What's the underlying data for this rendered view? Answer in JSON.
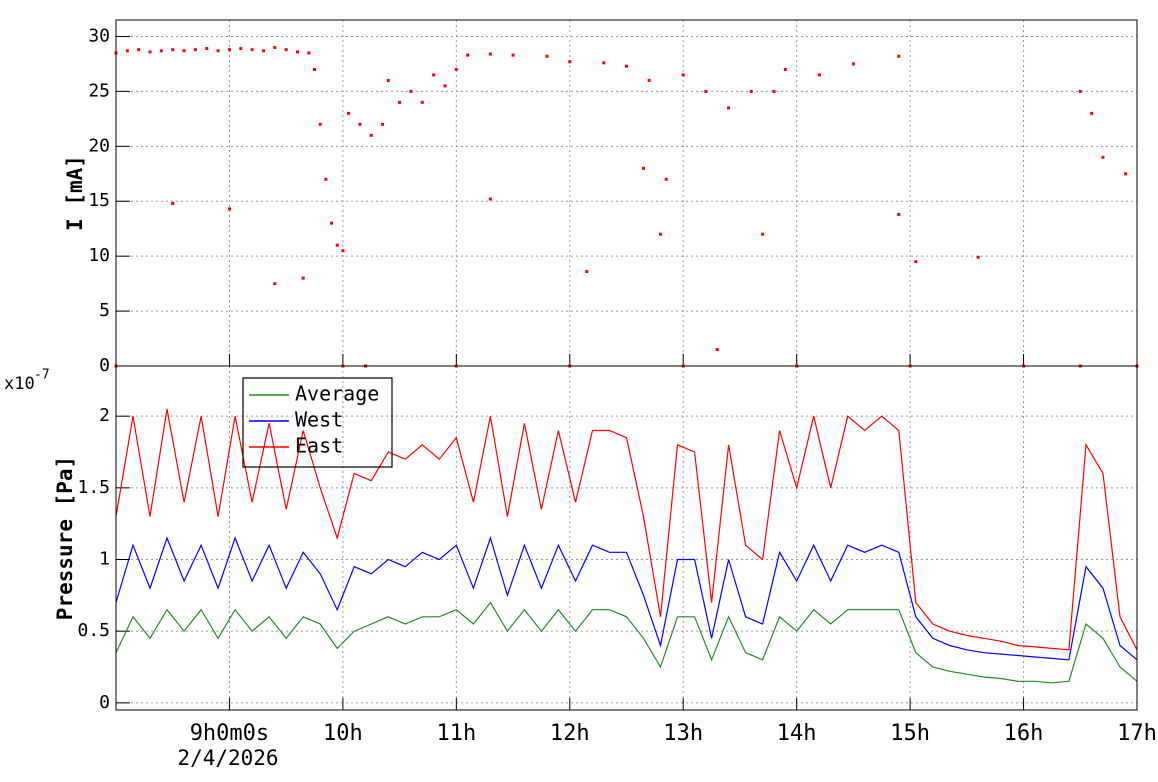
{
  "chart_data": [
    {
      "type": "scatter",
      "ylabel": "I [mA]",
      "color": "#ff0000",
      "xlim": [
        8,
        17
      ],
      "xticks": [
        9,
        10,
        11,
        12,
        13,
        14,
        15,
        16,
        17
      ],
      "ylim": [
        0,
        31.5
      ],
      "yticks": [
        0,
        5,
        10,
        15,
        20,
        25,
        30
      ],
      "grid": true,
      "x": [
        8.0,
        8.0,
        8.1,
        8.2,
        8.3,
        8.4,
        8.5,
        8.5,
        8.6,
        8.7,
        8.8,
        8.9,
        9.0,
        9.0,
        9.1,
        9.2,
        9.3,
        9.4,
        9.4,
        9.5,
        9.6,
        9.65,
        9.7,
        9.75,
        9.8,
        9.85,
        9.9,
        9.95,
        10.0,
        10.0,
        10.05,
        10.15,
        10.2,
        10.25,
        10.35,
        10.4,
        10.5,
        10.6,
        10.7,
        10.8,
        10.9,
        11.0,
        11.0,
        11.1,
        11.3,
        11.3,
        11.5,
        11.8,
        12.0,
        12.0,
        12.15,
        12.3,
        12.5,
        12.65,
        12.7,
        12.8,
        12.85,
        13.0,
        13.0,
        13.2,
        13.3,
        13.4,
        13.6,
        13.7,
        13.8,
        13.9,
        14.0,
        14.2,
        14.5,
        14.9,
        14.9,
        15.0,
        15.05,
        15.6,
        16.0,
        16.5,
        16.5,
        16.6,
        16.7,
        16.9,
        17.0
      ],
      "values": [
        28.5,
        0,
        28.7,
        28.8,
        28.6,
        28.7,
        28.8,
        14.8,
        28.7,
        28.8,
        28.9,
        28.7,
        28.8,
        14.3,
        28.9,
        28.8,
        28.7,
        29.0,
        7.5,
        28.8,
        28.6,
        8.0,
        28.5,
        27.0,
        22.0,
        17.0,
        13.0,
        11.0,
        10.5,
        0,
        23.0,
        22.0,
        0,
        21.0,
        22.0,
        26.0,
        24.0,
        25.0,
        24.0,
        26.5,
        25.5,
        27.0,
        0,
        28.3,
        28.4,
        15.2,
        28.3,
        28.2,
        27.7,
        0,
        8.6,
        27.6,
        27.3,
        18.0,
        26.0,
        12.0,
        17.0,
        26.5,
        0,
        25.0,
        1.5,
        23.5,
        25.0,
        12.0,
        25.0,
        27.0,
        0,
        26.5,
        27.5,
        28.2,
        13.8,
        0,
        9.5,
        9.9,
        0,
        25.0,
        0,
        23.0,
        19.0,
        17.5,
        0
      ]
    },
    {
      "type": "line",
      "ylabel": "Pressure [Pa]",
      "y_multiplier": "x10",
      "y_multiplier_exponent": "-7",
      "date_label": "2/4/2026",
      "legend": "upper-left",
      "grid": true,
      "xlim": [
        8,
        17
      ],
      "xticks": [
        {
          "value": 9,
          "label": "9h0m0s"
        },
        {
          "value": 10,
          "label": "10h"
        },
        {
          "value": 11,
          "label": "11h"
        },
        {
          "value": 12,
          "label": "12h"
        },
        {
          "value": 13,
          "label": "13h"
        },
        {
          "value": 14,
          "label": "14h"
        },
        {
          "value": 15,
          "label": "15h"
        },
        {
          "value": 16,
          "label": "16h"
        },
        {
          "value": 17,
          "label": "17h"
        }
      ],
      "ylim": [
        -0.05,
        2.35
      ],
      "yticks": [
        0,
        0.5,
        1,
        1.5,
        2
      ],
      "x": [
        8.0,
        8.15,
        8.3,
        8.45,
        8.6,
        8.75,
        8.9,
        9.05,
        9.2,
        9.35,
        9.5,
        9.65,
        9.8,
        9.95,
        10.1,
        10.25,
        10.4,
        10.55,
        10.7,
        10.85,
        11.0,
        11.15,
        11.3,
        11.45,
        11.6,
        11.75,
        11.9,
        12.05,
        12.2,
        12.35,
        12.5,
        12.65,
        12.8,
        12.95,
        13.1,
        13.25,
        13.4,
        13.55,
        13.7,
        13.85,
        14.0,
        14.15,
        14.3,
        14.45,
        14.6,
        14.75,
        14.9,
        15.05,
        15.2,
        15.35,
        15.5,
        15.65,
        15.8,
        15.95,
        16.1,
        16.25,
        16.4,
        16.55,
        16.7,
        16.85,
        17.0
      ],
      "series": [
        {
          "name": "Average",
          "color": "#228b22",
          "values": [
            0.35,
            0.6,
            0.45,
            0.65,
            0.5,
            0.65,
            0.45,
            0.65,
            0.5,
            0.6,
            0.45,
            0.6,
            0.55,
            0.38,
            0.5,
            0.55,
            0.6,
            0.55,
            0.6,
            0.6,
            0.65,
            0.55,
            0.7,
            0.5,
            0.65,
            0.5,
            0.65,
            0.5,
            0.65,
            0.65,
            0.6,
            0.45,
            0.25,
            0.6,
            0.6,
            0.3,
            0.6,
            0.35,
            0.3,
            0.6,
            0.5,
            0.65,
            0.55,
            0.65,
            0.65,
            0.65,
            0.65,
            0.35,
            0.25,
            0.22,
            0.2,
            0.18,
            0.17,
            0.15,
            0.15,
            0.14,
            0.15,
            0.55,
            0.45,
            0.25,
            0.15
          ]
        },
        {
          "name": "West",
          "color": "#0000ff",
          "values": [
            0.7,
            1.1,
            0.8,
            1.15,
            0.85,
            1.1,
            0.8,
            1.15,
            0.85,
            1.1,
            0.8,
            1.05,
            0.9,
            0.65,
            0.95,
            0.9,
            1.0,
            0.95,
            1.05,
            1.0,
            1.1,
            0.8,
            1.15,
            0.75,
            1.1,
            0.8,
            1.1,
            0.85,
            1.1,
            1.05,
            1.05,
            0.75,
            0.4,
            1.0,
            1.0,
            0.45,
            1.0,
            0.6,
            0.55,
            1.05,
            0.85,
            1.1,
            0.85,
            1.1,
            1.05,
            1.1,
            1.05,
            0.6,
            0.45,
            0.4,
            0.37,
            0.35,
            0.34,
            0.33,
            0.32,
            0.31,
            0.3,
            0.95,
            0.8,
            0.4,
            0.3
          ]
        },
        {
          "name": "East",
          "color": "#ff0000",
          "values": [
            1.3,
            2.0,
            1.3,
            2.05,
            1.4,
            2.0,
            1.3,
            2.0,
            1.4,
            1.95,
            1.35,
            1.9,
            1.5,
            1.15,
            1.6,
            1.55,
            1.75,
            1.7,
            1.8,
            1.7,
            1.85,
            1.4,
            2.0,
            1.3,
            1.95,
            1.35,
            1.9,
            1.4,
            1.9,
            1.9,
            1.85,
            1.3,
            0.6,
            1.8,
            1.75,
            0.7,
            1.8,
            1.1,
            1.0,
            1.9,
            1.5,
            2.0,
            1.5,
            2.0,
            1.9,
            2.0,
            1.9,
            0.7,
            0.55,
            0.5,
            0.47,
            0.45,
            0.43,
            0.4,
            0.39,
            0.38,
            0.37,
            1.8,
            1.6,
            0.6,
            0.37
          ]
        }
      ]
    }
  ]
}
